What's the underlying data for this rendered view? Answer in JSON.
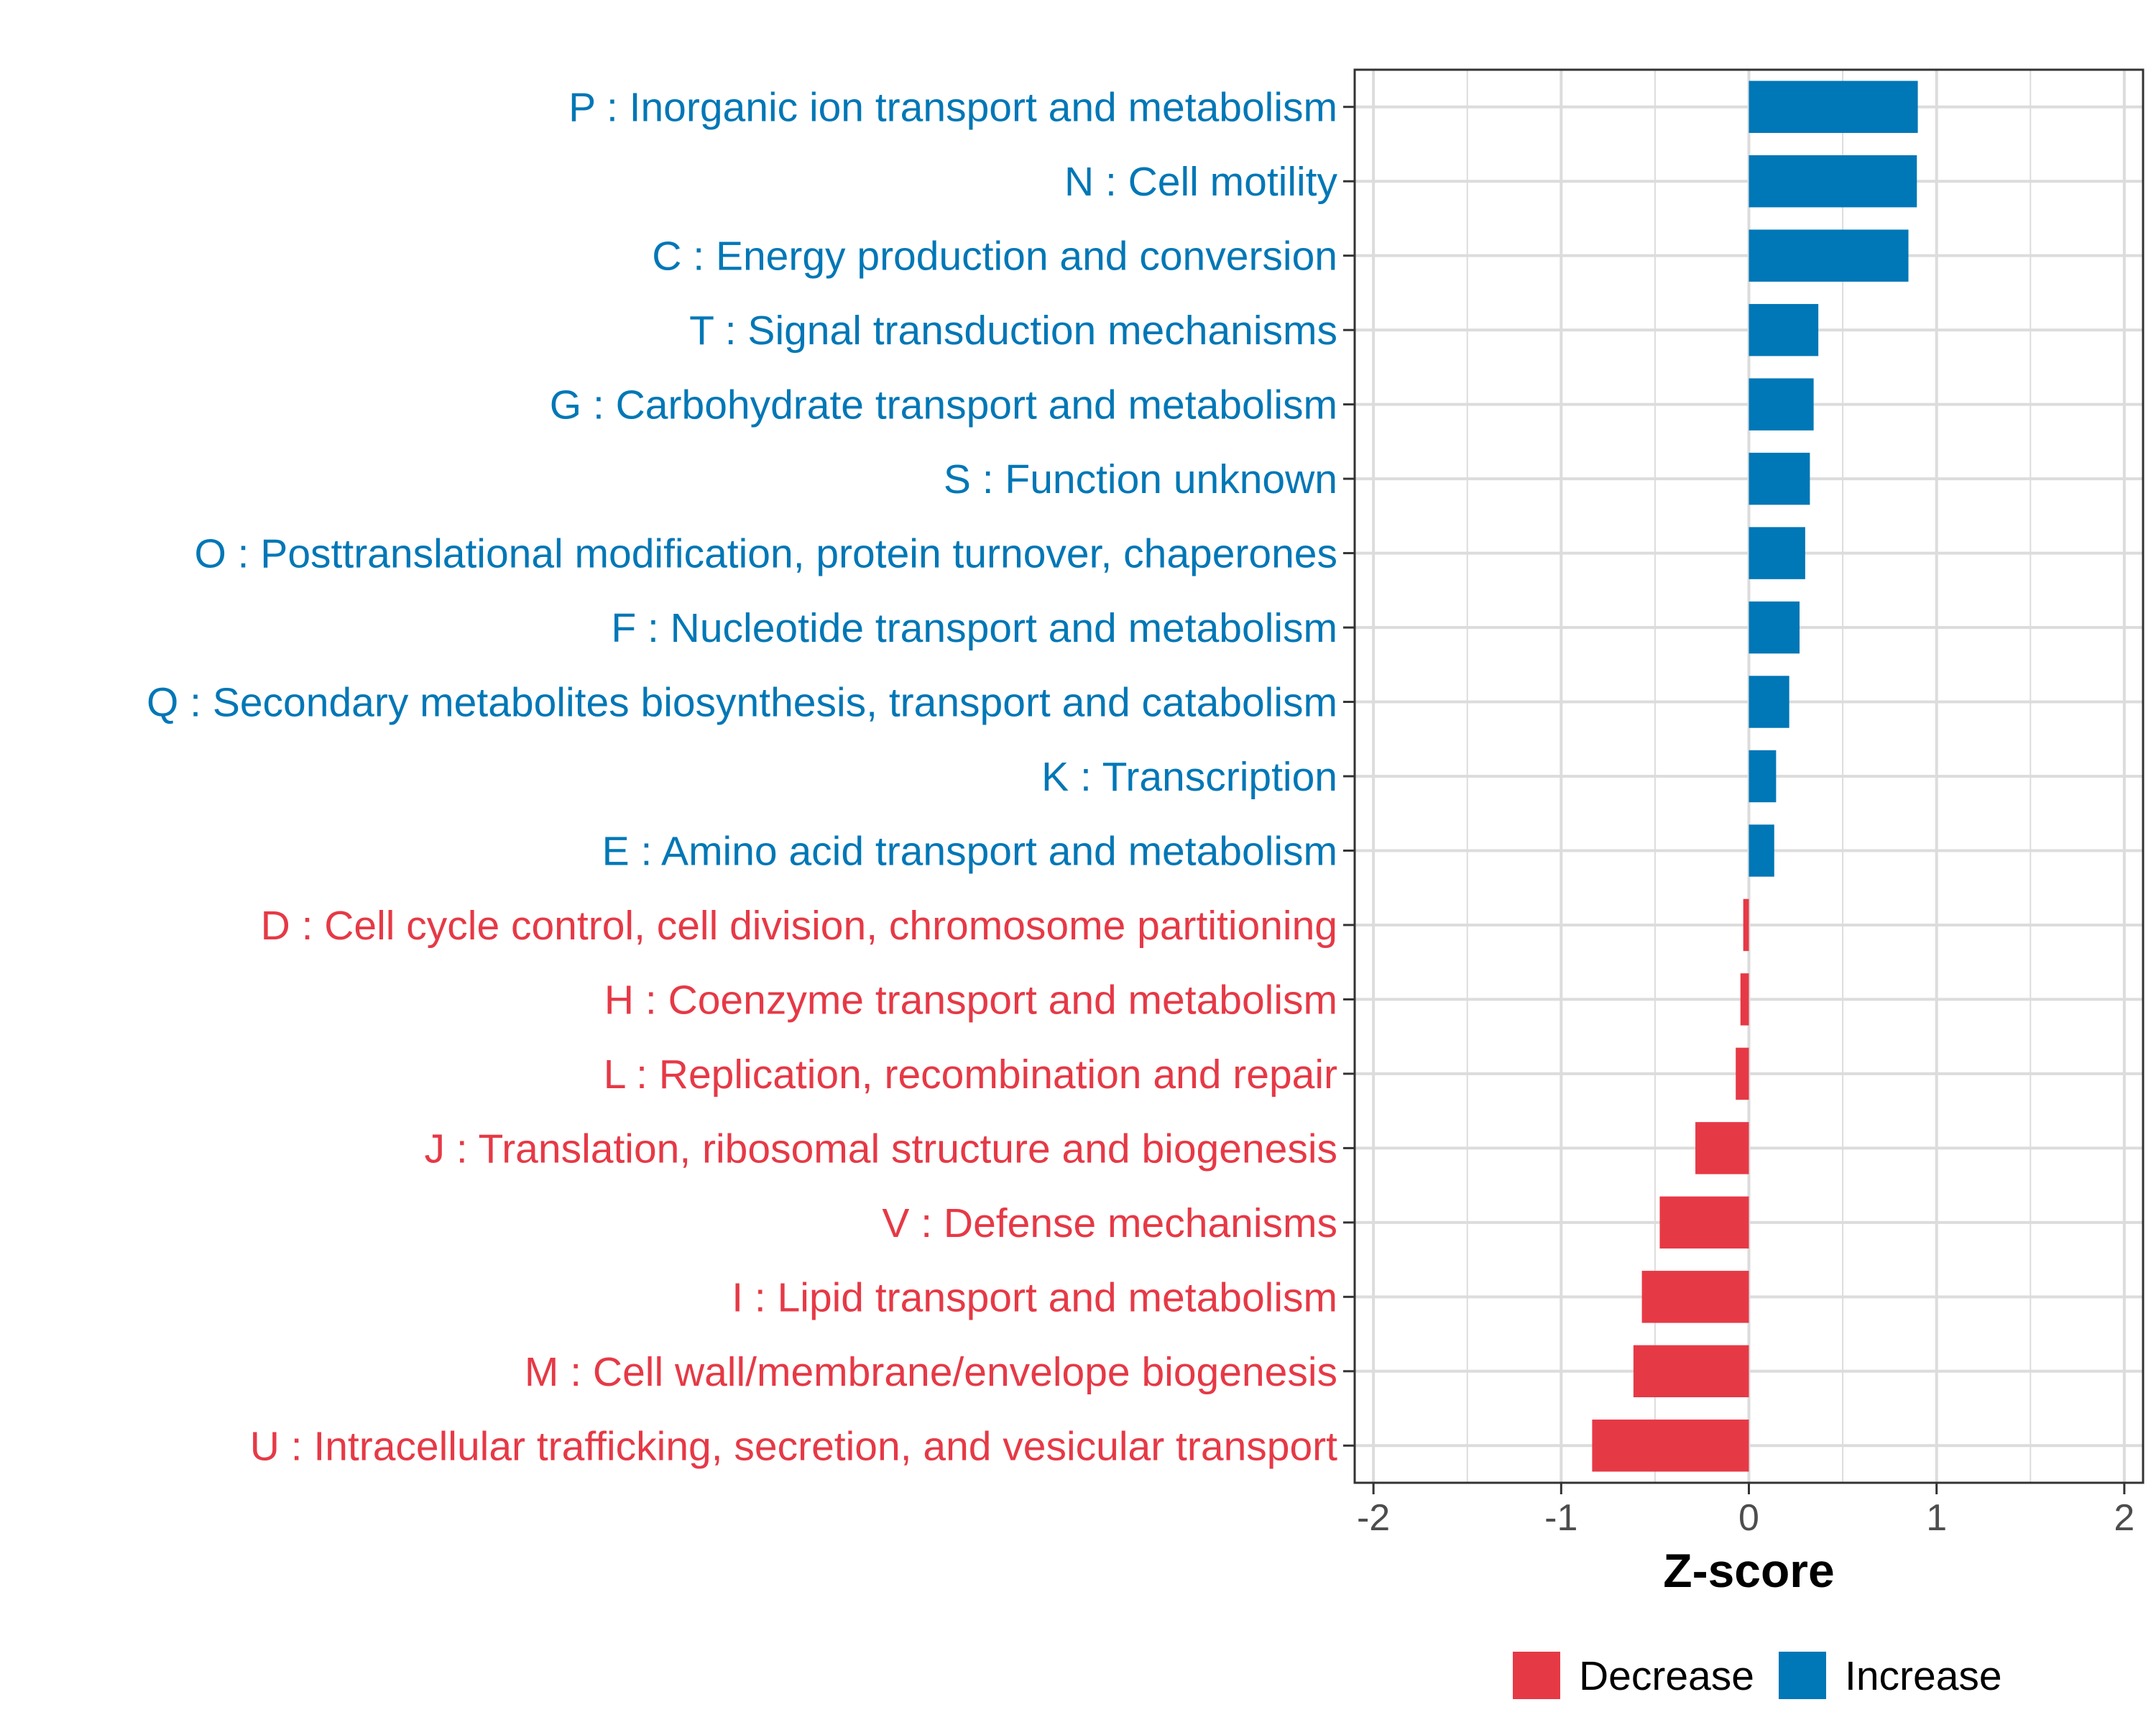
{
  "chart_data": {
    "type": "bar",
    "orientation": "horizontal",
    "title": "",
    "xlabel": "Z-score",
    "ylabel": "",
    "xlim": [
      -2.1,
      2.1
    ],
    "xticks": [
      -2,
      -1,
      0,
      1,
      2
    ],
    "grid": true,
    "legend_position": "bottom",
    "colors": {
      "Decrease": "#e63946",
      "Increase": "#0077b6"
    },
    "legend": [
      {
        "label": "Decrease",
        "color": "#e63946"
      },
      {
        "label": "Increase",
        "color": "#0077b6"
      }
    ],
    "categories": [
      "P : Inorganic ion transport and metabolism",
      "N : Cell motility",
      "C : Energy production and conversion",
      "T : Signal transduction mechanisms",
      "G : Carbohydrate transport and metabolism",
      "S : Function unknown",
      "O : Posttranslational modification, protein turnover, chaperones",
      "F : Nucleotide transport and metabolism",
      "Q : Secondary metabolites biosynthesis, transport and catabolism",
      "K : Transcription",
      "E : Amino acid transport and metabolism",
      "D : Cell cycle control, cell division, chromosome partitioning",
      "H : Coenzyme transport and metabolism",
      "L : Replication, recombination and repair",
      "J : Translation, ribosomal structure and biogenesis",
      "V : Defense mechanisms",
      "I : Lipid transport and metabolism",
      "M : Cell wall/membrane/envelope biogenesis",
      "U : Intracellular trafficking, secretion, and vesicular transport"
    ],
    "values": [
      0.9,
      0.895,
      0.85,
      0.37,
      0.345,
      0.325,
      0.3,
      0.27,
      0.215,
      0.145,
      0.135,
      -0.03,
      -0.045,
      -0.07,
      -0.285,
      -0.475,
      -0.57,
      -0.615,
      -0.835
    ],
    "groups": [
      "Increase",
      "Increase",
      "Increase",
      "Increase",
      "Increase",
      "Increase",
      "Increase",
      "Increase",
      "Increase",
      "Increase",
      "Increase",
      "Decrease",
      "Decrease",
      "Decrease",
      "Decrease",
      "Decrease",
      "Decrease",
      "Decrease",
      "Decrease"
    ]
  }
}
